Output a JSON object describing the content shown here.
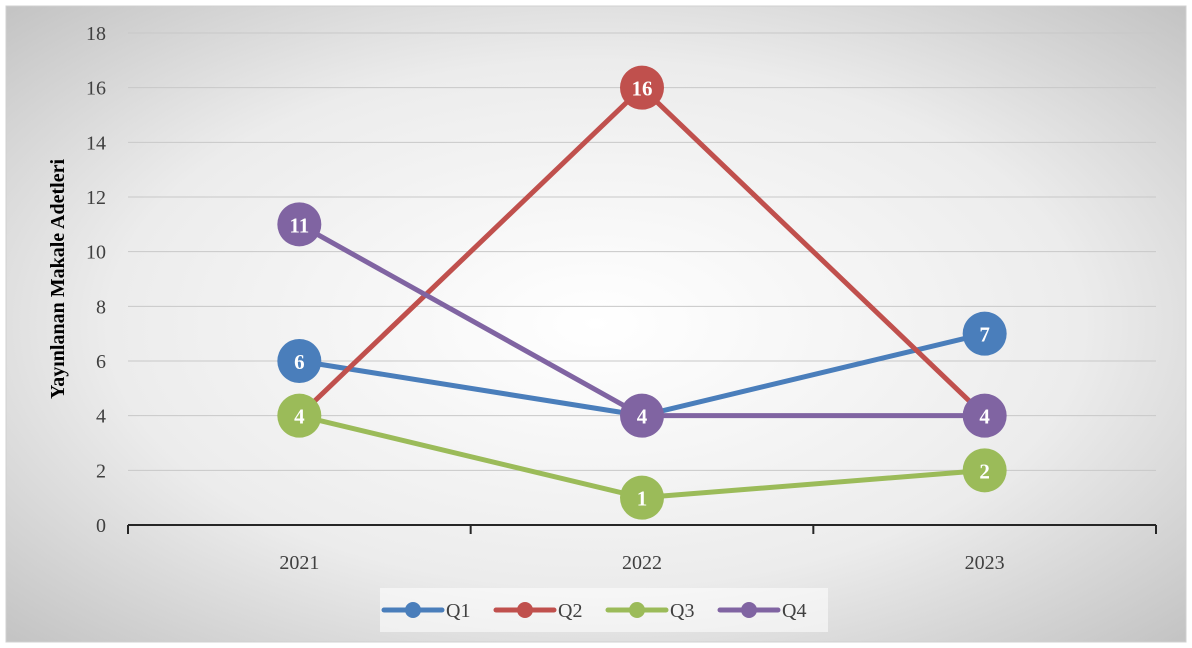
{
  "chart_data": {
    "type": "line",
    "title": "",
    "xlabel": "",
    "ylabel": "Yayınlanan Makale Adetleri",
    "categories": [
      "2021",
      "2022",
      "2023"
    ],
    "ylim": [
      0,
      18
    ],
    "yticks": [
      0,
      2,
      4,
      6,
      8,
      10,
      12,
      14,
      16,
      18
    ],
    "grid": true,
    "legend_position": "bottom",
    "series": [
      {
        "name": "Q1",
        "values": [
          6,
          4,
          7
        ],
        "color": "#4a7ebb"
      },
      {
        "name": "Q2",
        "values": [
          4,
          16,
          4
        ],
        "color": "#c0504d"
      },
      {
        "name": "Q3",
        "values": [
          4,
          1,
          2
        ],
        "color": "#9bbb59"
      },
      {
        "name": "Q4",
        "values": [
          11,
          4,
          4
        ],
        "color": "#8064a2"
      }
    ],
    "data_labels": [
      {
        "series": "Q1",
        "labels": [
          "6",
          "",
          "7"
        ]
      },
      {
        "series": "Q2",
        "labels": [
          "",
          "16",
          ""
        ]
      },
      {
        "series": "Q3",
        "labels": [
          "4",
          "1",
          "2"
        ]
      },
      {
        "series": "Q4",
        "labels": [
          "11",
          "4",
          "4"
        ]
      }
    ]
  }
}
